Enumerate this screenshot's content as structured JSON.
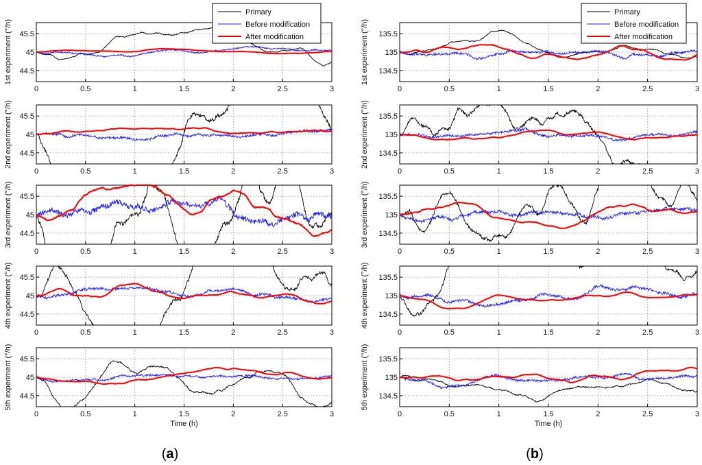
{
  "legend": {
    "primary": "Primary",
    "before": "Before modification",
    "after": "After modification"
  },
  "colors": {
    "primary": "#000000",
    "before": "#1a1aff",
    "after": "#ff0000",
    "grid": "#8a8a8a",
    "axis": "#000000"
  },
  "panel_labels": {
    "a": "a",
    "b": "b",
    "open": "(",
    "close": ")"
  },
  "x_axis": {
    "label": "Time (h)",
    "ticks": [
      "0",
      "0.5",
      "1",
      "1.5",
      "2",
      "2.5",
      "3"
    ]
  },
  "chart_data": [
    {
      "type": "line",
      "panel": "a",
      "experiments": [
        {
          "ylabel": "1st experiment (°/h)",
          "nominal": 45,
          "ylim": [
            44.2,
            45.8
          ],
          "yticks": [
            "44.5",
            "45",
            "45.5"
          ],
          "amp_primary": 0.06,
          "amp_before": 0.03,
          "amp_after": 0.01,
          "seed": 11
        },
        {
          "ylabel": "2nd experiment (°/h)",
          "nominal": 45,
          "ylim": [
            44.2,
            45.8
          ],
          "yticks": [
            "44.5",
            "45",
            "45.5"
          ],
          "amp_primary": 0.25,
          "amp_before": 0.05,
          "amp_after": 0.03,
          "seed": 23
        },
        {
          "ylabel": "3rd experiment (°/h)",
          "nominal": 45,
          "ylim": [
            44.2,
            45.8
          ],
          "yticks": [
            "44.5",
            "45",
            "45.5"
          ],
          "amp_primary": 0.3,
          "amp_before": 0.12,
          "amp_after": 0.1,
          "seed": 37
        },
        {
          "ylabel": "4th experiment (°/h)",
          "nominal": 45,
          "ylim": [
            44.2,
            45.8
          ],
          "yticks": [
            "44.5",
            "45",
            "45.5"
          ],
          "amp_primary": 0.22,
          "amp_before": 0.06,
          "amp_after": 0.04,
          "seed": 41
        },
        {
          "ylabel": "5th experiment (°/h)",
          "nominal": 45,
          "ylim": [
            44.2,
            45.8
          ],
          "yticks": [
            "44.5",
            "45",
            "45.5"
          ],
          "amp_primary": 0.1,
          "amp_before": 0.04,
          "amp_after": 0.03,
          "seed": 53
        }
      ]
    },
    {
      "type": "line",
      "panel": "b",
      "experiments": [
        {
          "ylabel": "1st experiment (°/h)",
          "nominal": 135,
          "ylim": [
            134.2,
            135.8
          ],
          "yticks": [
            "134.5",
            "135",
            "135.5"
          ],
          "amp_primary": 0.06,
          "amp_before": 0.05,
          "amp_after": 0.04,
          "seed": 61
        },
        {
          "ylabel": "2nd experiment (°/h)",
          "nominal": 135,
          "ylim": [
            134.2,
            135.8
          ],
          "yticks": [
            "134.5",
            "135",
            "135.5"
          ],
          "amp_primary": 0.2,
          "amp_before": 0.05,
          "amp_after": 0.03,
          "seed": 73
        },
        {
          "ylabel": "3rd experiment (°/h)",
          "nominal": 135,
          "ylim": [
            134.2,
            135.8
          ],
          "yticks": [
            "134.5",
            "135",
            "135.5"
          ],
          "amp_primary": 0.2,
          "amp_before": 0.07,
          "amp_after": 0.05,
          "seed": 83
        },
        {
          "ylabel": "4th experiment (°/h)",
          "nominal": 135,
          "ylim": [
            134.2,
            135.8
          ],
          "yticks": [
            "134.5",
            "135",
            "135.5"
          ],
          "amp_primary": 0.2,
          "amp_before": 0.06,
          "amp_after": 0.03,
          "seed": 97
        },
        {
          "ylabel": "5th experiment (°/h)",
          "nominal": 135,
          "ylim": [
            134.2,
            135.8
          ],
          "yticks": [
            "134.5",
            "135",
            "135.5"
          ],
          "amp_primary": 0.08,
          "amp_before": 0.05,
          "amp_after": 0.03,
          "seed": 101
        }
      ]
    }
  ]
}
